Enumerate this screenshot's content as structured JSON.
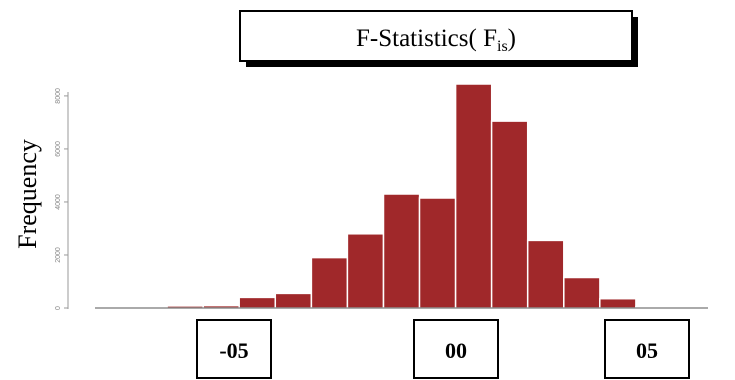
{
  "chart_data": {
    "type": "bar",
    "title": "F-Statistics( F",
    "title_subscript": "is",
    "title_close": ")",
    "ylabel": "Frequency",
    "xlabel": "",
    "bar_color": "#A0282A",
    "ylim": [
      0,
      8600
    ],
    "y_ticks": [
      "0",
      "2000",
      "4000",
      "6000",
      "8000"
    ],
    "y_tick_values": [
      0,
      2000,
      4000,
      6000,
      8000
    ],
    "x_tick_labels": [
      "-05",
      "00",
      "05"
    ],
    "bins": [
      {
        "x0": -0.6,
        "x1": -0.55,
        "count": 30
      },
      {
        "x0": -0.55,
        "x1": -0.5,
        "count": 80
      },
      {
        "x0": -0.5,
        "x1": -0.45,
        "count": 90
      },
      {
        "x0": -0.45,
        "x1": -0.4,
        "count": 400
      },
      {
        "x0": -0.4,
        "x1": -0.35,
        "count": 550
      },
      {
        "x0": -0.35,
        "x1": -0.3,
        "count": 1900
      },
      {
        "x0": -0.3,
        "x1": -0.25,
        "count": 2800
      },
      {
        "x0": -0.25,
        "x1": -0.2,
        "count": 4300
      },
      {
        "x0": -0.2,
        "x1": -0.15,
        "count": 4150
      },
      {
        "x0": -0.15,
        "x1": -0.1,
        "count": 8450
      },
      {
        "x0": -0.1,
        "x1": -0.05,
        "count": 7050
      },
      {
        "x0": -0.05,
        "x1": 0.0,
        "count": 2550
      },
      {
        "x0": 0.0,
        "x1": 0.05,
        "count": 1150
      },
      {
        "x0": 0.05,
        "x1": 0.1,
        "count": 350
      },
      {
        "x0": 0.1,
        "x1": 0.15,
        "count": 50
      }
    ]
  }
}
